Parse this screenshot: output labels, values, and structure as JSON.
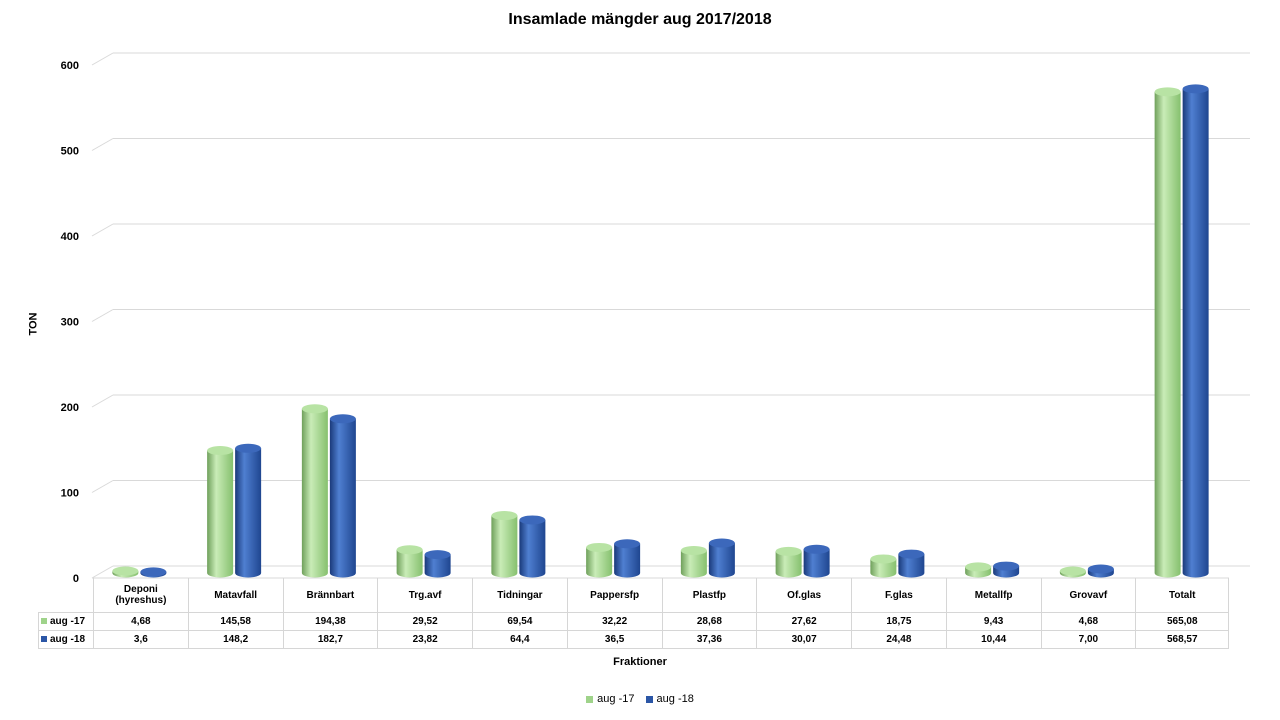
{
  "chart_data": {
    "type": "bar",
    "title": "Insamlade mängder aug 2017/2018",
    "xlabel": "Fraktioner",
    "ylabel": "TON",
    "ylim": [
      0,
      600
    ],
    "yticks": [
      "0",
      "100",
      "200",
      "300",
      "400",
      "500",
      "600"
    ],
    "grid": true,
    "legend_position": "bottom",
    "categories": [
      "Deponi (hyreshus)",
      "Matavfall",
      "Brännbart",
      "Trg.avf",
      "Tidningar",
      "Pappersfp",
      "Plastfp",
      "Of.glas",
      "F.glas",
      "Metallfp",
      "Grovavf",
      "Totalt"
    ],
    "series": [
      {
        "name": "aug -17",
        "color": "#9fd38a",
        "values": [
          4.68,
          145.58,
          194.38,
          29.52,
          69.54,
          32.22,
          28.68,
          27.62,
          18.75,
          9.43,
          4.68,
          565.08
        ],
        "labels": [
          "4,68",
          "145,58",
          "194,38",
          "29,52",
          "69,54",
          "32,22",
          "28,68",
          "27,62",
          "18,75",
          "9,43",
          "4,68",
          "565,08"
        ]
      },
      {
        "name": "aug -18",
        "color": "#2b56a6",
        "values": [
          3.6,
          148.2,
          182.7,
          23.82,
          64.4,
          36.5,
          37.36,
          30.07,
          24.48,
          10.44,
          7.0,
          568.57
        ],
        "labels": [
          "3,6",
          "148,2",
          "182,7",
          "23,82",
          "64,4",
          "36,5",
          "37,36",
          "30,07",
          "24,48",
          "10,44",
          "7,00",
          "568,57"
        ]
      }
    ]
  }
}
